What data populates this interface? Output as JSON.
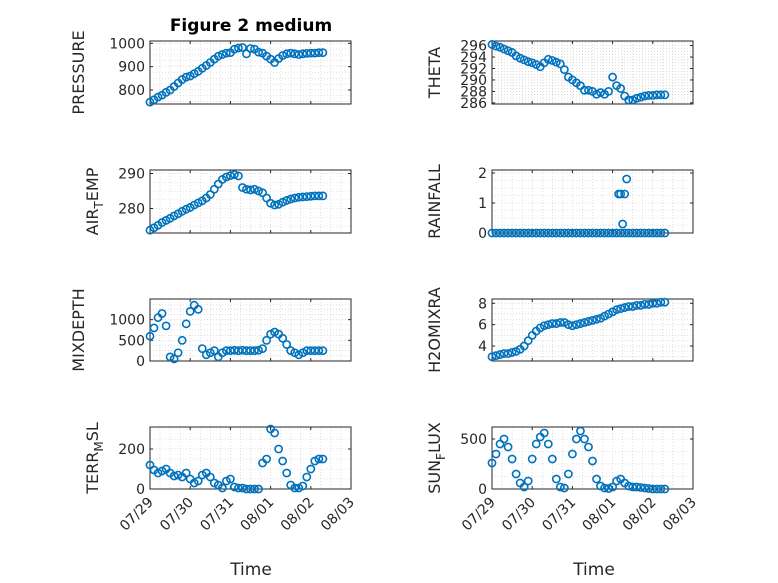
{
  "figure_title": "Figure 2 medium",
  "x_axis": {
    "label": "Time",
    "ticks": [
      0,
      1,
      2,
      3,
      4,
      5
    ],
    "tick_labels": [
      "07/29",
      "07/30",
      "07/31",
      "08/01",
      "08/02",
      "08/03"
    ],
    "range": [
      0,
      5
    ]
  },
  "colors": {
    "marker": "#0072BD",
    "axis": "#262626",
    "grid": "#c8c8c8"
  },
  "chart_data": [
    {
      "type": "scatter",
      "ylabel": "PRESSURE",
      "title": "Figure 2 medium",
      "ylim": [
        740,
        1010
      ],
      "yticks": [
        800,
        900,
        1000
      ],
      "ytick_labels": [
        "800",
        "900",
        "1000"
      ],
      "x": [
        0.0,
        0.1,
        0.2,
        0.3,
        0.4,
        0.5,
        0.6,
        0.7,
        0.8,
        0.9,
        1.0,
        1.1,
        1.2,
        1.3,
        1.4,
        1.5,
        1.6,
        1.7,
        1.8,
        1.9,
        2.0,
        2.1,
        2.2,
        2.3,
        2.4,
        2.5,
        2.6,
        2.7,
        2.8,
        2.9,
        3.0,
        3.1,
        3.2,
        3.3,
        3.4,
        3.5,
        3.6,
        3.7,
        3.8,
        3.9,
        4.0,
        4.1,
        4.2,
        4.3
      ],
      "y": [
        748,
        758,
        770,
        778,
        790,
        800,
        815,
        830,
        845,
        855,
        860,
        870,
        880,
        893,
        905,
        918,
        932,
        945,
        952,
        958,
        960,
        975,
        980,
        982,
        955,
        978,
        975,
        962,
        958,
        945,
        932,
        918,
        935,
        948,
        955,
        958,
        955,
        952,
        955,
        957,
        958,
        958,
        960,
        960
      ]
    },
    {
      "type": "scatter",
      "ylabel": "THETA",
      "ylim": [
        285.8,
        296.8
      ],
      "yticks": [
        286,
        288,
        290,
        292,
        294,
        296
      ],
      "ytick_labels": [
        "286",
        "288",
        "290",
        "292",
        "294",
        "296"
      ],
      "x": [
        0.0,
        0.1,
        0.2,
        0.3,
        0.4,
        0.5,
        0.6,
        0.7,
        0.8,
        0.9,
        1.0,
        1.1,
        1.2,
        1.3,
        1.4,
        1.5,
        1.6,
        1.7,
        1.8,
        1.9,
        2.0,
        2.1,
        2.2,
        2.3,
        2.4,
        2.5,
        2.6,
        2.7,
        2.8,
        2.9,
        3.0,
        3.1,
        3.2,
        3.3,
        3.4,
        3.5,
        3.6,
        3.7,
        3.8,
        3.9,
        4.0,
        4.1,
        4.2,
        4.3
      ],
      "y": [
        296.2,
        295.9,
        295.7,
        295.4,
        295.1,
        294.8,
        294.2,
        293.8,
        293.5,
        293.2,
        293.0,
        292.7,
        292.3,
        293.0,
        293.6,
        293.4,
        293.1,
        292.8,
        291.8,
        290.5,
        290.0,
        289.5,
        289.0,
        288.2,
        288.2,
        288.0,
        287.5,
        287.8,
        287.5,
        288.0,
        290.5,
        289.0,
        288.5,
        287.2,
        286.5,
        286.5,
        286.8,
        287.0,
        287.2,
        287.3,
        287.3,
        287.4,
        287.4,
        287.4
      ]
    },
    {
      "type": "scatter",
      "ylabel": "AIR_TEMP",
      "ylabel_main": "AIR",
      "ylabel_sub": "T",
      "ylabel_rest": "EMP",
      "ylim": [
        273,
        291
      ],
      "yticks": [
        280,
        290
      ],
      "ytick_labels": [
        "280",
        "290"
      ],
      "x": [
        0.0,
        0.1,
        0.2,
        0.3,
        0.4,
        0.5,
        0.6,
        0.7,
        0.8,
        0.9,
        1.0,
        1.1,
        1.2,
        1.3,
        1.4,
        1.5,
        1.6,
        1.7,
        1.8,
        1.9,
        2.0,
        2.1,
        2.2,
        2.3,
        2.4,
        2.5,
        2.6,
        2.7,
        2.8,
        2.9,
        3.0,
        3.1,
        3.2,
        3.3,
        3.4,
        3.5,
        3.6,
        3.7,
        3.8,
        3.9,
        4.0,
        4.1,
        4.2,
        4.3
      ],
      "y": [
        273.8,
        274.5,
        275.2,
        276.0,
        276.6,
        277.2,
        277.9,
        278.5,
        279.2,
        279.8,
        280.3,
        281.0,
        281.6,
        282.2,
        283.0,
        284.0,
        285.5,
        287.0,
        288.3,
        289.0,
        289.4,
        289.7,
        289.3,
        286.0,
        285.5,
        285.3,
        285.5,
        285.0,
        284.5,
        283.0,
        281.5,
        281.0,
        281.2,
        281.8,
        282.3,
        282.7,
        283.0,
        283.2,
        283.3,
        283.4,
        283.5,
        283.6,
        283.6,
        283.6
      ]
    },
    {
      "type": "scatter",
      "ylabel": "RAINFALL",
      "ylim": [
        0,
        2.1
      ],
      "yticks": [
        0,
        1,
        2
      ],
      "ytick_labels": [
        "0",
        "1",
        "2"
      ],
      "x": [
        0.0,
        0.1,
        0.2,
        0.3,
        0.4,
        0.5,
        0.6,
        0.7,
        0.8,
        0.9,
        1.0,
        1.1,
        1.2,
        1.3,
        1.4,
        1.5,
        1.6,
        1.7,
        1.8,
        1.9,
        2.0,
        2.1,
        2.2,
        2.3,
        2.4,
        2.5,
        2.6,
        2.7,
        2.8,
        2.9,
        3.0,
        3.1,
        3.2,
        3.3,
        3.4,
        3.5,
        3.6,
        3.7,
        3.8,
        3.9,
        4.0,
        4.1,
        4.2,
        4.3,
        3.15,
        3.2,
        3.25,
        3.3,
        3.35
      ],
      "y": [
        0,
        0,
        0,
        0,
        0,
        0,
        0,
        0,
        0,
        0,
        0,
        0,
        0,
        0,
        0,
        0,
        0,
        0,
        0,
        0,
        0,
        0,
        0,
        0,
        0,
        0,
        0,
        0,
        0,
        0,
        0,
        0,
        0,
        0,
        0,
        0,
        0,
        0,
        0,
        0,
        0,
        0,
        0,
        0,
        1.3,
        1.3,
        0.3,
        1.3,
        1.8
      ]
    },
    {
      "type": "scatter",
      "ylabel": "MIXDEPTH",
      "ylim": [
        0,
        1500
      ],
      "yticks": [
        0,
        500,
        1000
      ],
      "ytick_labels": [
        "0",
        "500",
        "1000"
      ],
      "x": [
        0.0,
        0.1,
        0.2,
        0.3,
        0.4,
        0.5,
        0.6,
        0.7,
        0.8,
        0.9,
        1.0,
        1.1,
        1.2,
        1.3,
        1.4,
        1.5,
        1.6,
        1.7,
        1.8,
        1.9,
        2.0,
        2.1,
        2.2,
        2.3,
        2.4,
        2.5,
        2.6,
        2.7,
        2.8,
        2.9,
        3.0,
        3.1,
        3.2,
        3.3,
        3.4,
        3.5,
        3.6,
        3.7,
        3.8,
        3.9,
        4.0,
        4.1,
        4.2,
        4.3
      ],
      "y": [
        600,
        800,
        1050,
        1150,
        850,
        100,
        50,
        200,
        500,
        900,
        1200,
        1350,
        1250,
        300,
        150,
        200,
        250,
        100,
        200,
        250,
        250,
        260,
        250,
        260,
        250,
        250,
        250,
        260,
        300,
        500,
        650,
        700,
        650,
        550,
        400,
        250,
        200,
        150,
        200,
        250,
        250,
        250,
        250,
        250
      ]
    },
    {
      "type": "scatter",
      "ylabel": "H2OMIXRA",
      "ylim": [
        2.6,
        8.4
      ],
      "yticks": [
        4,
        6,
        8
      ],
      "ytick_labels": [
        "4",
        "6",
        "8"
      ],
      "x": [
        0.0,
        0.1,
        0.2,
        0.3,
        0.4,
        0.5,
        0.6,
        0.7,
        0.8,
        0.9,
        1.0,
        1.1,
        1.2,
        1.3,
        1.4,
        1.5,
        1.6,
        1.7,
        1.8,
        1.9,
        2.0,
        2.1,
        2.2,
        2.3,
        2.4,
        2.5,
        2.6,
        2.7,
        2.8,
        2.9,
        3.0,
        3.1,
        3.2,
        3.3,
        3.4,
        3.5,
        3.6,
        3.7,
        3.8,
        3.9,
        4.0,
        4.1,
        4.2,
        4.3
      ],
      "y": [
        3.0,
        3.1,
        3.2,
        3.3,
        3.3,
        3.4,
        3.5,
        3.7,
        4.0,
        4.5,
        5.0,
        5.4,
        5.7,
        5.9,
        6.0,
        6.1,
        6.1,
        6.2,
        6.2,
        6.0,
        5.9,
        6.0,
        6.1,
        6.2,
        6.3,
        6.4,
        6.5,
        6.6,
        6.8,
        7.0,
        7.2,
        7.4,
        7.5,
        7.6,
        7.7,
        7.7,
        7.8,
        7.8,
        7.9,
        7.9,
        8.0,
        8.0,
        8.1,
        8.1
      ]
    },
    {
      "type": "scatter",
      "ylabel": "TERR_MSL",
      "ylabel_main": "TERR",
      "ylabel_sub": "M",
      "ylabel_rest": "SL",
      "ylim": [
        0,
        310
      ],
      "yticks": [
        0,
        200
      ],
      "ytick_labels": [
        "0",
        "200"
      ],
      "x": [
        0.0,
        0.1,
        0.2,
        0.3,
        0.4,
        0.5,
        0.6,
        0.7,
        0.8,
        0.9,
        1.0,
        1.1,
        1.2,
        1.3,
        1.4,
        1.5,
        1.6,
        1.7,
        1.8,
        1.9,
        2.0,
        2.1,
        2.2,
        2.3,
        2.4,
        2.5,
        2.6,
        2.7,
        2.8,
        2.9,
        3.0,
        3.1,
        3.2,
        3.3,
        3.4,
        3.5,
        3.6,
        3.7,
        3.8,
        3.9,
        4.0,
        4.1,
        4.2,
        4.3
      ],
      "y": [
        120,
        95,
        80,
        90,
        100,
        80,
        65,
        70,
        60,
        80,
        50,
        30,
        40,
        70,
        80,
        60,
        30,
        20,
        5,
        40,
        50,
        10,
        5,
        5,
        0,
        0,
        0,
        0,
        130,
        150,
        300,
        280,
        200,
        140,
        80,
        20,
        5,
        5,
        15,
        60,
        100,
        140,
        150,
        150
      ]
    },
    {
      "type": "scatter",
      "ylabel": "SUN_FLUX",
      "ylabel_main": "SUN",
      "ylabel_sub": "F",
      "ylabel_rest": "LUX",
      "ylim": [
        0,
        620
      ],
      "yticks": [
        0,
        500
      ],
      "ytick_labels": [
        "0",
        "500"
      ],
      "x": [
        0.0,
        0.1,
        0.2,
        0.3,
        0.4,
        0.5,
        0.6,
        0.7,
        0.8,
        0.9,
        1.0,
        1.1,
        1.2,
        1.3,
        1.4,
        1.5,
        1.6,
        1.7,
        1.8,
        1.9,
        2.0,
        2.1,
        2.2,
        2.3,
        2.4,
        2.5,
        2.6,
        2.7,
        2.8,
        2.9,
        3.0,
        3.1,
        3.2,
        3.3,
        3.4,
        3.5,
        3.6,
        3.7,
        3.8,
        3.9,
        4.0,
        4.1,
        4.2,
        4.3
      ],
      "y": [
        260,
        350,
        450,
        500,
        420,
        300,
        150,
        60,
        20,
        80,
        300,
        450,
        520,
        560,
        450,
        300,
        100,
        20,
        10,
        150,
        350,
        500,
        580,
        500,
        420,
        280,
        100,
        30,
        10,
        5,
        20,
        80,
        100,
        60,
        30,
        20,
        20,
        15,
        10,
        5,
        0,
        0,
        0,
        0
      ]
    }
  ]
}
